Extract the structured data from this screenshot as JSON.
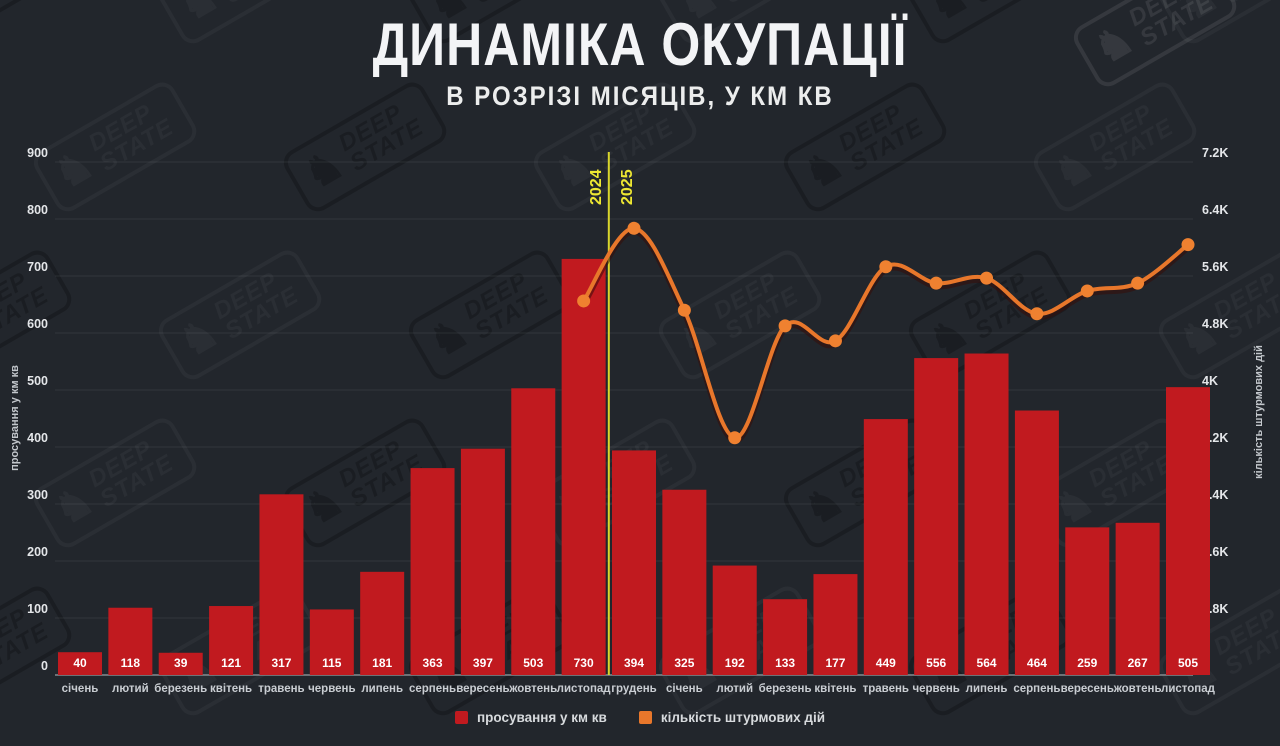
{
  "brand": {
    "watermark_top": "DEEP",
    "watermark_bottom": "STATE",
    "knight_icon": "♞"
  },
  "header": {
    "title": "ДИНАМІКА ОКУПАЦІЇ",
    "subtitle": "В РОЗРІЗІ МІСЯЦІВ, У КМ КВ"
  },
  "chart_data": {
    "type": "bar",
    "title": "ДИНАМІКА ОКУПАЦІЇ",
    "subtitle": "В РОЗРІЗІ МІСЯЦІВ, У КМ КВ",
    "background": "#22262c",
    "grid": "horizontal",
    "categories": [
      "січень",
      "лютий",
      "березень",
      "квітень",
      "травень",
      "червень",
      "липень",
      "серпень",
      "вересень",
      "жовтень",
      "листопад",
      "грудень",
      "січень",
      "лютий",
      "березень",
      "квітень",
      "травень",
      "червень",
      "липень",
      "серпень",
      "вересень",
      "жовтень",
      "листопад"
    ],
    "series": [
      {
        "name": "просування у км кв",
        "type": "bar",
        "axis": "left",
        "color": "#c11a1f",
        "value_label_color": "#ffffff",
        "values": [
          40,
          118,
          39,
          121,
          317,
          115,
          181,
          363,
          397,
          503,
          730,
          394,
          325,
          192,
          133,
          177,
          449,
          556,
          564,
          464,
          259,
          267,
          505
        ]
      },
      {
        "name": "кількість штурмових дій",
        "type": "line",
        "axis": "right",
        "color": "#e8772b",
        "marker_color": "#ef8130",
        "start_index": 10,
        "values": [
          5250,
          6270,
          5120,
          3330,
          4900,
          4690,
          5730,
          5500,
          5570,
          5070,
          5390,
          5500,
          6040
        ]
      }
    ],
    "left_axis": {
      "title": "просування у км кв",
      "min": 0,
      "max": 900,
      "step": 100,
      "tick_labels": [
        "0",
        "100",
        "200",
        "300",
        "400",
        "500",
        "600",
        "700",
        "800",
        "900"
      ]
    },
    "right_axis": {
      "title": "кількість штурмових дій",
      "min": 0,
      "max": 7200,
      "step": 800,
      "tick_labels": [
        "0",
        "0.8K",
        "1.6K",
        "2.4K",
        "3.2K",
        "4K",
        "4.8K",
        "5.6K",
        "6.4K",
        "7.2K"
      ]
    },
    "year_divider": {
      "left_label": "2024",
      "right_label": "2025",
      "between_categories": [
        10,
        11
      ],
      "color": "#d9d62c",
      "label_color": "#ede732"
    },
    "legend": {
      "position": "bottom",
      "items": [
        {
          "label": "просування у км кв",
          "color": "#c11a1f"
        },
        {
          "label": "кількість штурмових дій",
          "color": "#e8772b"
        }
      ]
    }
  }
}
